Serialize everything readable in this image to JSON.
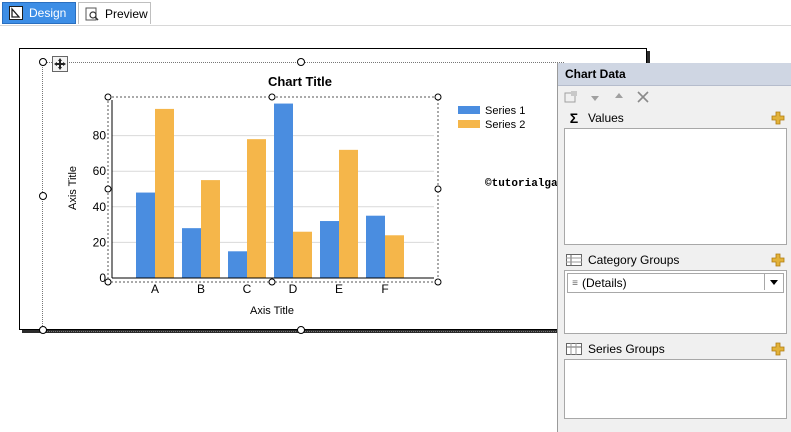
{
  "tabs": [
    {
      "label": "Design"
    },
    {
      "label": "Preview"
    }
  ],
  "chart_data": {
    "type": "bar",
    "title": "Chart Title",
    "xlabel": "Axis Title",
    "ylabel": "Axis Title",
    "categories": [
      "A",
      "B",
      "C",
      "D",
      "E",
      "F"
    ],
    "series": [
      {
        "name": "Series 1",
        "color": "#4a8de0",
        "values": [
          48,
          28,
          15,
          98,
          32,
          35
        ]
      },
      {
        "name": "Series 2",
        "color": "#f5b64a",
        "values": [
          95,
          55,
          78,
          26,
          72,
          24
        ]
      }
    ],
    "ylim": [
      0,
      100
    ],
    "yticks": [
      "0",
      "20",
      "40",
      "60",
      "80"
    ],
    "legend": "top-right",
    "grid": true
  },
  "watermark": "©tutorialgateway.org",
  "chart_data_panel": {
    "title": "Chart Data",
    "values_label": "Values",
    "category_groups_label": "Category Groups",
    "category_group_item": "(Details)",
    "series_groups_label": "Series Groups"
  },
  "colors": {
    "accent": "#3d8ee6",
    "panel_header": "#cfd6e3",
    "plus_icon": "#d9a520"
  }
}
